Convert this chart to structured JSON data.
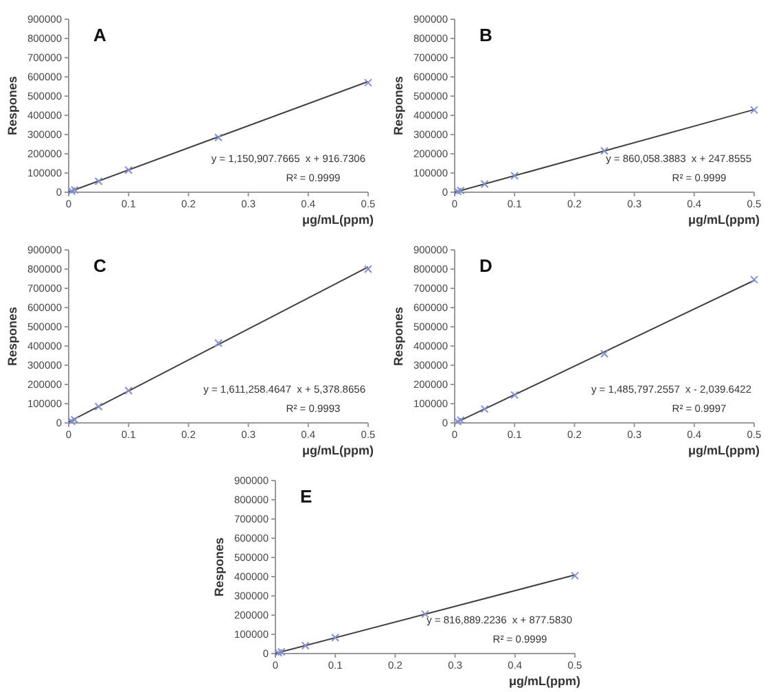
{
  "chart_data": [
    {
      "type": "scatter",
      "title": "A",
      "xlabel": "μg/mL(ppm)",
      "ylabel": "Respones",
      "xlim": [
        0,
        0.5
      ],
      "xticks": [
        0,
        0.1,
        0.2,
        0.3,
        0.4,
        0.5
      ],
      "ylim": [
        0,
        900000
      ],
      "yticks": [
        0,
        100000,
        200000,
        300000,
        400000,
        500000,
        600000,
        700000,
        800000,
        900000
      ],
      "grid": false,
      "annotations": [
        "y = 1,150,907.7665  x + 916.7306",
        "R² = 0.9999"
      ],
      "series": [
        {
          "marker": "cross",
          "color": "#7f8fcf",
          "x": [
            0.005,
            0.01,
            0.05,
            0.1,
            0.25,
            0.5
          ],
          "values": [
            6000,
            12000,
            57000,
            115000,
            285000,
            570000
          ]
        },
        {
          "type": "line",
          "color": "#404040",
          "x": [
            0,
            0.5
          ],
          "values": [
            1000,
            576000
          ]
        }
      ]
    },
    {
      "type": "scatter",
      "title": "B",
      "xlabel": "μg/mL(ppm)",
      "ylabel": "Respones",
      "xlim": [
        0,
        0.5
      ],
      "xticks": [
        0,
        0.1,
        0.2,
        0.3,
        0.4,
        0.5
      ],
      "ylim": [
        0,
        900000
      ],
      "yticks": [
        0,
        100000,
        200000,
        300000,
        400000,
        500000,
        600000,
        700000,
        800000,
        900000
      ],
      "grid": false,
      "annotations": [
        "y = 860,058.3883  x + 247.8555",
        "R² = 0.9999"
      ],
      "series": [
        {
          "marker": "cross",
          "color": "#7f8fcf",
          "x": [
            0.005,
            0.01,
            0.05,
            0.1,
            0.25,
            0.5
          ],
          "values": [
            4000,
            9000,
            43000,
            86000,
            215000,
            428000
          ]
        },
        {
          "type": "line",
          "color": "#404040",
          "x": [
            0,
            0.5
          ],
          "values": [
            0,
            430000
          ]
        }
      ]
    },
    {
      "type": "scatter",
      "title": "C",
      "xlabel": "μg/mL(ppm)",
      "ylabel": "Respones",
      "xlim": [
        0,
        0.5
      ],
      "xticks": [
        0,
        0.1,
        0.2,
        0.3,
        0.4,
        0.5
      ],
      "ylim": [
        0,
        900000
      ],
      "yticks": [
        0,
        100000,
        200000,
        300000,
        400000,
        500000,
        600000,
        700000,
        800000,
        900000
      ],
      "grid": false,
      "annotations": [
        "y = 1,611,258.4647  x + 5,378.8656",
        "R² = 0.9993"
      ],
      "series": [
        {
          "marker": "cross",
          "color": "#7f8fcf",
          "x": [
            0.005,
            0.01,
            0.05,
            0.1,
            0.25,
            0.5
          ],
          "values": [
            8000,
            16000,
            85000,
            168000,
            415000,
            800000
          ]
        },
        {
          "type": "line",
          "color": "#404040",
          "x": [
            0,
            0.5
          ],
          "values": [
            5000,
            811000
          ]
        }
      ]
    },
    {
      "type": "scatter",
      "title": "D",
      "xlabel": "μg/mL(ppm)",
      "ylabel": "Respones",
      "xlim": [
        0,
        0.5
      ],
      "xticks": [
        0,
        0.1,
        0.2,
        0.3,
        0.4,
        0.5
      ],
      "ylim": [
        0,
        900000
      ],
      "yticks": [
        0,
        100000,
        200000,
        300000,
        400000,
        500000,
        600000,
        700000,
        800000,
        900000
      ],
      "grid": false,
      "annotations": [
        "y = 1,485,797.2557  x - 2,039.6422",
        "R² = 0.9997"
      ],
      "series": [
        {
          "marker": "cross",
          "color": "#7f8fcf",
          "x": [
            0.005,
            0.01,
            0.05,
            0.1,
            0.25,
            0.5
          ],
          "values": [
            7000,
            14000,
            72000,
            145000,
            360000,
            745000
          ]
        },
        {
          "type": "line",
          "color": "#404040",
          "x": [
            0.002,
            0.5
          ],
          "values": [
            1000,
            741000
          ]
        }
      ]
    },
    {
      "type": "scatter",
      "title": "E",
      "xlabel": "μg/mL(ppm)",
      "ylabel": "Respones",
      "xlim": [
        0,
        0.5
      ],
      "xticks": [
        0,
        0.1,
        0.2,
        0.3,
        0.4,
        0.5
      ],
      "ylim": [
        0,
        900000
      ],
      "yticks": [
        0,
        100000,
        200000,
        300000,
        400000,
        500000,
        600000,
        700000,
        800000,
        900000
      ],
      "grid": false,
      "annotations": [
        "y = 816,889.2236  x + 877.5830",
        "R² = 0.9999"
      ],
      "series": [
        {
          "marker": "cross",
          "color": "#7f8fcf",
          "x": [
            0.005,
            0.01,
            0.05,
            0.1,
            0.25,
            0.5
          ],
          "values": [
            4000,
            9000,
            41000,
            83000,
            205000,
            405000
          ]
        },
        {
          "type": "line",
          "color": "#404040",
          "x": [
            0,
            0.5
          ],
          "values": [
            1000,
            409000
          ]
        }
      ]
    }
  ]
}
